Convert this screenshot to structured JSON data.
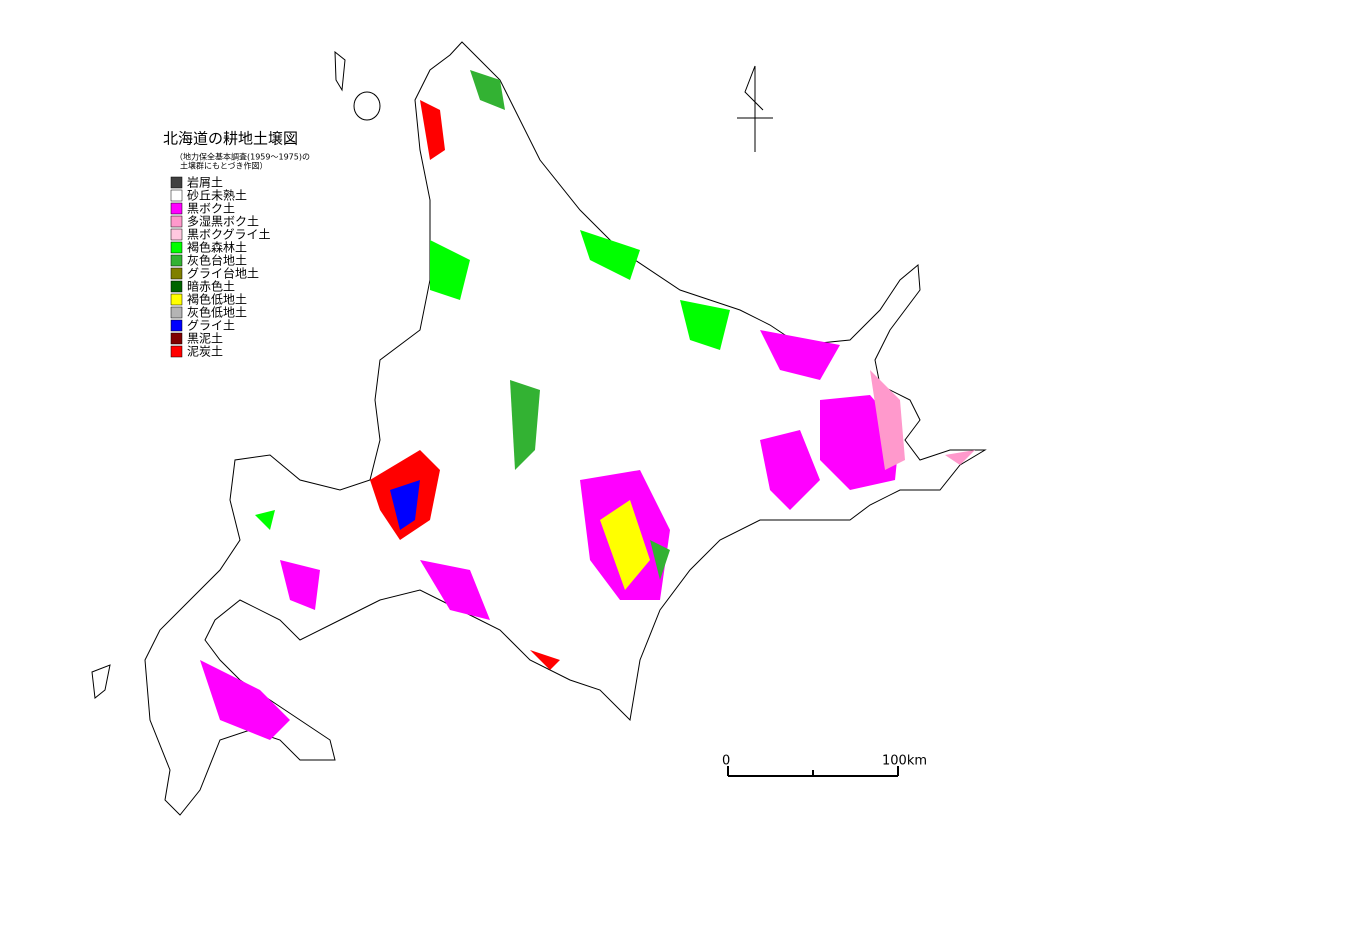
{
  "title": "北海道の耕地土壌図",
  "subtitle": [
    "（地力保全基本調査(1959～1975)の",
    "土壌群にもとづき作図）"
  ],
  "legend": [
    {
      "label": "岩屑土",
      "color": "#404040"
    },
    {
      "label": "砂丘未熟土",
      "color": "#ffffff"
    },
    {
      "label": "黒ボク土",
      "color": "#ff00ff"
    },
    {
      "label": "多湿黒ボク土",
      "color": "#ff99cc"
    },
    {
      "label": "黒ボクグライ土",
      "color": "#ffc8e0"
    },
    {
      "label": "褐色森林土",
      "color": "#00ff00"
    },
    {
      "label": "灰色台地土",
      "color": "#33b233"
    },
    {
      "label": "グライ台地土",
      "color": "#808000"
    },
    {
      "label": "暗赤色土",
      "color": "#006400"
    },
    {
      "label": "褐色低地土",
      "color": "#ffff00"
    },
    {
      "label": "灰色低地土",
      "color": "#b4b4b4"
    },
    {
      "label": "グライ土",
      "color": "#0000ff"
    },
    {
      "label": "黒泥土",
      "color": "#800000"
    },
    {
      "label": "泥炭土",
      "color": "#ff0000"
    }
  ],
  "scale": {
    "start_label": "0",
    "end_label": "100km"
  }
}
